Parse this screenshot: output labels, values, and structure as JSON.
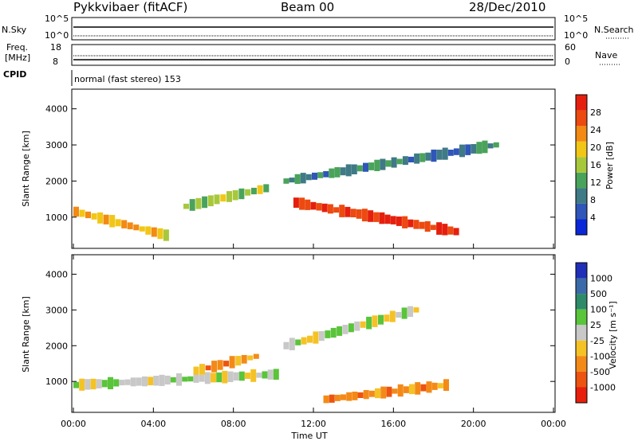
{
  "header": {
    "radar": "Pykkvibaer (fitACF)",
    "beam": "Beam 00",
    "date": "28/Dec/2010"
  },
  "panels": {
    "nsky": {
      "left_label": "N.Sky",
      "right_label": "N.Search",
      "left_ticks": [
        "10^5",
        "10^0"
      ],
      "right_ticks": [
        "10^5",
        "10^0"
      ]
    },
    "freq": {
      "left_label_1": "Freq.",
      "left_label_2": "[MHz]",
      "right_label": "Nave",
      "left_ticks": [
        "18",
        "8"
      ],
      "right_ticks": [
        "60",
        "0"
      ]
    },
    "cpid": {
      "label": "CPID",
      "mode": "normal (fast stereo) 153"
    }
  },
  "chart_data": [
    {
      "type": "heatmap",
      "title": "",
      "xlabel": "Time UT",
      "ylabel": "Slant Range [km]",
      "xlim": [
        "00:00",
        "24:00"
      ],
      "ylim": [
        180,
        4500
      ],
      "x_ticks": [
        "00:00",
        "04:00",
        "08:00",
        "12:00",
        "16:00",
        "20:00",
        "00:00"
      ],
      "y_ticks": [
        1000,
        2000,
        3000,
        4000
      ],
      "colorbar": {
        "label": "Power [dB]",
        "range": [
          0,
          30
        ],
        "ticks": [
          "4",
          "8",
          "12",
          "16",
          "20",
          "24",
          "28"
        ],
        "colors": [
          "#0a28d8",
          "#2f56b8",
          "#3f7a86",
          "#4aa35a",
          "#a8c83c",
          "#f2c616",
          "#f28a14",
          "#ec4a10",
          "#e51f0d"
        ]
      },
      "features": [
        {
          "time_start": "00:00",
          "time_end": "04:30",
          "range_km_start": 1150,
          "range_km_end": 500,
          "level": 20
        },
        {
          "time_start": "05:30",
          "time_end": "09:30",
          "range_km_start": 1300,
          "range_km_end": 1800,
          "level": 14
        },
        {
          "time_start": "11:00",
          "time_end": "19:00",
          "range_km_start": 1400,
          "range_km_end": 600,
          "level": 28
        },
        {
          "time_start": "10:30",
          "time_end": "21:00",
          "range_km_start": 2000,
          "range_km_end": 3000,
          "level": 8
        }
      ]
    },
    {
      "type": "heatmap",
      "title": "",
      "xlabel": "Time UT",
      "ylabel": "Slant Range [km]",
      "xlim": [
        "00:00",
        "24:00"
      ],
      "ylim": [
        180,
        4500
      ],
      "x_ticks": [
        "00:00",
        "04:00",
        "08:00",
        "12:00",
        "16:00",
        "20:00",
        "00:00"
      ],
      "y_ticks": [
        1000,
        2000,
        3000,
        4000
      ],
      "colorbar": {
        "label": "Velocity [m s⁻¹]",
        "ticks": [
          "1000",
          "500",
          "100",
          "25",
          "-25",
          "-100",
          "-500",
          "-1000"
        ],
        "colors": [
          "#1f2fb8",
          "#3b6aa8",
          "#2f8a6a",
          "#5ac43a",
          "#c8c8c8",
          "#f5c226",
          "#f38a18",
          "#ec5410",
          "#e81f0c"
        ]
      },
      "features": [
        {
          "time_start": "00:00",
          "time_end": "10:00",
          "range_km_start": 900,
          "range_km_end": 1200,
          "velocity": 0
        },
        {
          "time_start": "06:00",
          "time_end": "09:00",
          "range_km_start": 1300,
          "range_km_end": 1700,
          "velocity": -300
        },
        {
          "time_start": "12:30",
          "time_end": "18:30",
          "range_km_start": 500,
          "range_km_end": 900,
          "velocity": -200
        },
        {
          "time_start": "10:30",
          "time_end": "17:00",
          "range_km_start": 2000,
          "range_km_end": 3000,
          "velocity": 0
        }
      ]
    }
  ]
}
